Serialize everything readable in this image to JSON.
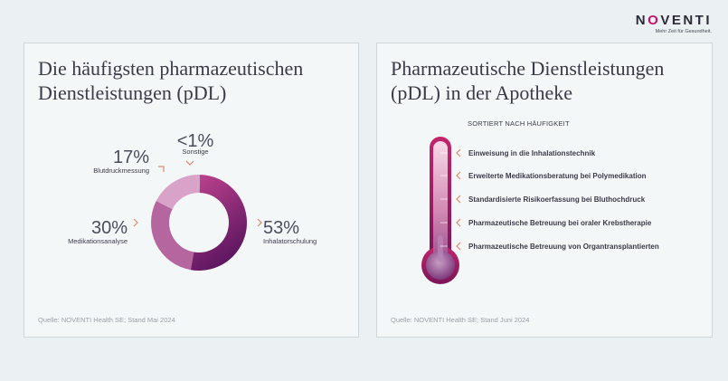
{
  "brand": {
    "name": "NOVENTI",
    "tagline": "Mehr Zeit für Gesundheit."
  },
  "left_card": {
    "title_line1": "Die häufigsten pharmazeutischen",
    "title_line2": "Dienstleistungen (pDL)",
    "source": "Quelle: NOVENTI Health SE; Stand Mai 2024"
  },
  "right_card": {
    "title_line1": "Pharmazeutische Dienstleistungen",
    "title_line2": "(pDL) in der Apotheke",
    "sorted_label": "SORTIERT NACH HÄUFIGKEIT",
    "items": [
      "Einweisung in die Inhalationstechnik",
      "Erweiterte Medikationsberatung bei Polymedikation",
      "Standardisierte Risikoerfassung bei Bluthochdruck",
      "Pharmazeutische Betreuung bei oraler Krebstherapie",
      "Pharmazeutische Betreuung von Organtransplantierten"
    ],
    "source": "Quelle: NOVENTI Health SE; Stand Juni 2024"
  },
  "colors": {
    "accent_chevron": "#d88a6e",
    "thermo_outer": "#b5195f",
    "thermo_inner_top": "#f7dce8",
    "thermo_inner_bottom": "#9a4f8c"
  },
  "chart_data": {
    "type": "pie",
    "donut": true,
    "categories": [
      "Inhalatorschulung",
      "Medikationsanalyse",
      "Blutdruckmessung",
      "Sonstige"
    ],
    "values": [
      53,
      30,
      17,
      1
    ],
    "labels": [
      "53%",
      "30%",
      "17%",
      "<1%"
    ],
    "colors": [
      "#8a1f7a",
      "#b5669f",
      "#d9a3c9",
      "#d9a3c9"
    ],
    "title": "Die häufigsten pharmazeutischen Dienstleistungen (pDL)"
  }
}
